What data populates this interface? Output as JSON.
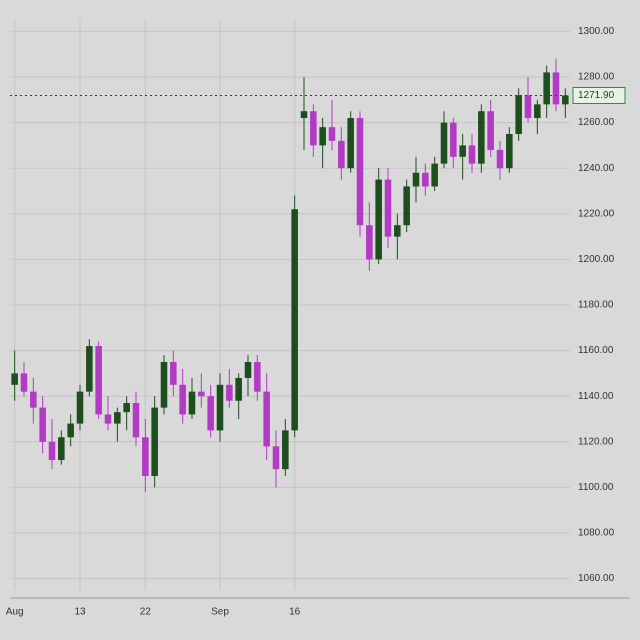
{
  "chart_data": {
    "type": "candlestick",
    "categories": [
      "Aug",
      null,
      null,
      null,
      null,
      null,
      null,
      "13",
      null,
      null,
      null,
      null,
      null,
      null,
      "22",
      null,
      null,
      null,
      null,
      null,
      null,
      null,
      "Sep",
      null,
      null,
      null,
      null,
      null,
      null,
      null,
      "16",
      null,
      null,
      null,
      null,
      null,
      null,
      null,
      null,
      null,
      null,
      null,
      null,
      null,
      null,
      null,
      null,
      null,
      null,
      null,
      null,
      null,
      null,
      null,
      null,
      null,
      null,
      null,
      null,
      null
    ],
    "open": [
      1145,
      1150,
      1142,
      1135,
      1120,
      1112,
      1122,
      1128,
      1142,
      1162,
      1132,
      1128,
      1133,
      1137,
      1122,
      1105,
      1135,
      1155,
      1145,
      1132,
      1142,
      1140,
      1125,
      1145,
      1138,
      1148,
      1155,
      1142,
      1118,
      1108,
      1125,
      1262,
      1265,
      1250,
      1258,
      1252,
      1240,
      1262,
      1215,
      1200,
      1235,
      1210,
      1215,
      1232,
      1238,
      1232,
      1242,
      1260,
      1245,
      1250,
      1242,
      1265,
      1248,
      1240,
      1255,
      1272,
      1262,
      1268,
      1282,
      1268
    ],
    "high": [
      1160,
      1155,
      1148,
      1140,
      1130,
      1125,
      1132,
      1145,
      1165,
      1164,
      1140,
      1135,
      1140,
      1142,
      1130,
      1140,
      1158,
      1160,
      1152,
      1148,
      1150,
      1145,
      1150,
      1152,
      1150,
      1158,
      1158,
      1150,
      1125,
      1130,
      1228,
      1280,
      1268,
      1262,
      1270,
      1258,
      1265,
      1265,
      1225,
      1240,
      1240,
      1220,
      1235,
      1245,
      1242,
      1245,
      1265,
      1262,
      1255,
      1255,
      1268,
      1270,
      1252,
      1258,
      1275,
      1280,
      1270,
      1285,
      1288,
      1275
    ],
    "low": [
      1138,
      1140,
      1128,
      1115,
      1108,
      1110,
      1118,
      1125,
      1140,
      1130,
      1125,
      1120,
      1125,
      1118,
      1098,
      1100,
      1132,
      1140,
      1128,
      1130,
      1135,
      1122,
      1120,
      1135,
      1130,
      1140,
      1138,
      1112,
      1100,
      1105,
      1122,
      1248,
      1245,
      1240,
      1248,
      1235,
      1238,
      1210,
      1195,
      1198,
      1205,
      1200,
      1212,
      1225,
      1228,
      1230,
      1240,
      1240,
      1235,
      1238,
      1238,
      1245,
      1235,
      1238,
      1252,
      1260,
      1255,
      1262,
      1265,
      1262
    ],
    "close": [
      1150,
      1142,
      1135,
      1120,
      1112,
      1122,
      1128,
      1142,
      1162,
      1132,
      1128,
      1133,
      1137,
      1122,
      1105,
      1135,
      1155,
      1145,
      1132,
      1142,
      1140,
      1125,
      1145,
      1138,
      1148,
      1155,
      1142,
      1118,
      1108,
      1125,
      1222,
      1265,
      1250,
      1258,
      1252,
      1240,
      1262,
      1215,
      1200,
      1235,
      1210,
      1215,
      1232,
      1238,
      1232,
      1242,
      1260,
      1245,
      1250,
      1242,
      1265,
      1248,
      1240,
      1255,
      1272,
      1262,
      1268,
      1282,
      1268,
      1271.9
    ],
    "up_color": "#1e4d1e",
    "down_color": "#b23ac4",
    "ylim": [
      1055,
      1305
    ],
    "yticks": [
      {
        "value": 1060,
        "label": "1060.00"
      },
      {
        "value": 1080,
        "label": "1080.00"
      },
      {
        "value": 1100,
        "label": "1100.00"
      },
      {
        "value": 1120,
        "label": "1120.00"
      },
      {
        "value": 1140,
        "label": "1140.00"
      },
      {
        "value": 1160,
        "label": "1160.00"
      },
      {
        "value": 1180,
        "label": "1180.00"
      },
      {
        "value": 1200,
        "label": "1200.00"
      },
      {
        "value": 1220,
        "label": "1220.00"
      },
      {
        "value": 1240,
        "label": "1240.00"
      },
      {
        "value": 1260,
        "label": "1260.00"
      },
      {
        "value": 1280,
        "label": "1280.00"
      },
      {
        "value": 1300,
        "label": "1300.00"
      }
    ],
    "last_price": {
      "value": 1271.9,
      "label": "1271.90"
    },
    "grid": true
  }
}
